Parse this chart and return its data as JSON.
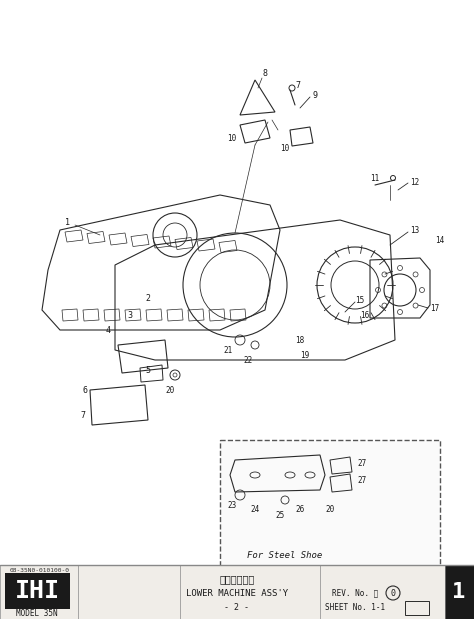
{
  "bg_color": "#f5f5f0",
  "title_japanese": "下部機械組立",
  "title_english": "LOWER MACHINE ASS'Y",
  "page_num": "- 2 -",
  "model": "MODEL 35N",
  "doc_num": "08-35N0-010100-0",
  "rev_no": "REV. No. ⒪",
  "sheet_no": "SHEET No. 1-1",
  "ihi_text": "IHI",
  "sheet_num": "1",
  "footer_bar_color": "#1a1a1a",
  "line_color": "#2a2a2a",
  "diagram_bg": "#ffffff"
}
